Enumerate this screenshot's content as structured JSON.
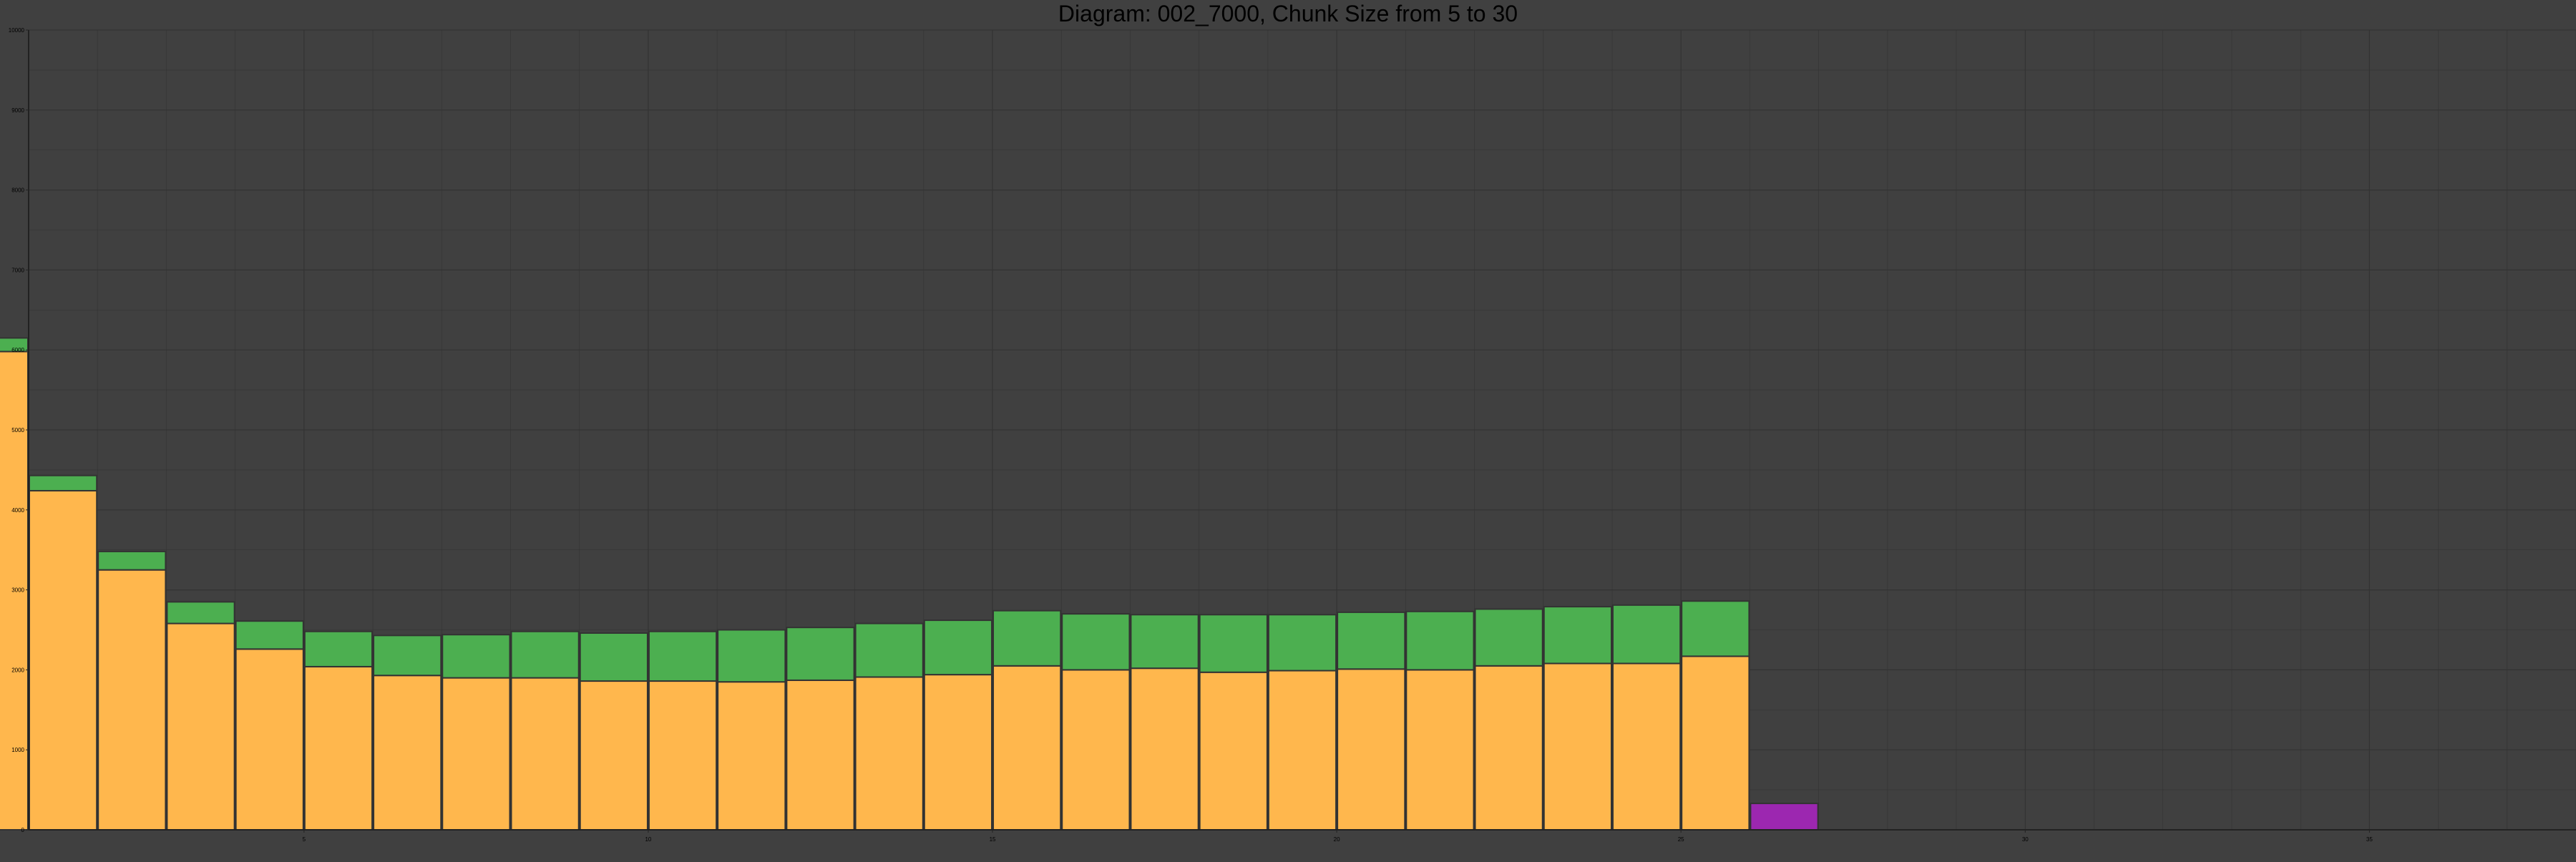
{
  "chart_data": {
    "type": "bar",
    "stacked": true,
    "title": "Diagram: 002_7000, Chunk Size from 5 to 30",
    "xlabel": "",
    "ylabel": "",
    "xlim": [
      1,
      38
    ],
    "ylim": [
      0,
      10000
    ],
    "grid": true,
    "legend": "none",
    "x_ticks": [
      "5",
      "10",
      "15",
      "20",
      "25",
      "30",
      "35"
    ],
    "y_ticks": [
      "0",
      "1000",
      "2000",
      "3000",
      "4000",
      "5000",
      "6000",
      "7000",
      "8000",
      "9000",
      "10000"
    ],
    "x": [
      1,
      2,
      3,
      4,
      5,
      6,
      7,
      8,
      9,
      10,
      11,
      12,
      13,
      14,
      15,
      16,
      17,
      18,
      19,
      20,
      21,
      22,
      23,
      24,
      25,
      26,
      27
    ],
    "series": [
      {
        "color": "#FFB74D",
        "values": [
          5980,
          4240,
          3250,
          2580,
          2260,
          2040,
          1930,
          1900,
          1900,
          1860,
          1860,
          1850,
          1870,
          1910,
          1940,
          2050,
          2000,
          2020,
          1970,
          1990,
          2010,
          2000,
          2050,
          2080,
          2080,
          2170,
          0
        ]
      },
      {
        "color": "#4CAF50",
        "values": [
          170,
          190,
          230,
          270,
          350,
          440,
          500,
          540,
          580,
          600,
          620,
          650,
          660,
          670,
          680,
          690,
          700,
          670,
          720,
          700,
          710,
          730,
          710,
          710,
          730,
          690,
          0
        ]
      },
      {
        "color": "#9C27B0",
        "values": [
          0,
          0,
          0,
          0,
          0,
          0,
          0,
          0,
          0,
          0,
          0,
          0,
          0,
          0,
          0,
          0,
          0,
          0,
          0,
          0,
          0,
          0,
          0,
          0,
          0,
          0,
          330
        ]
      }
    ],
    "colors": {
      "background": "#404040",
      "grid": "#333333",
      "axis": "#222222",
      "bar_edge": "#333333"
    }
  }
}
